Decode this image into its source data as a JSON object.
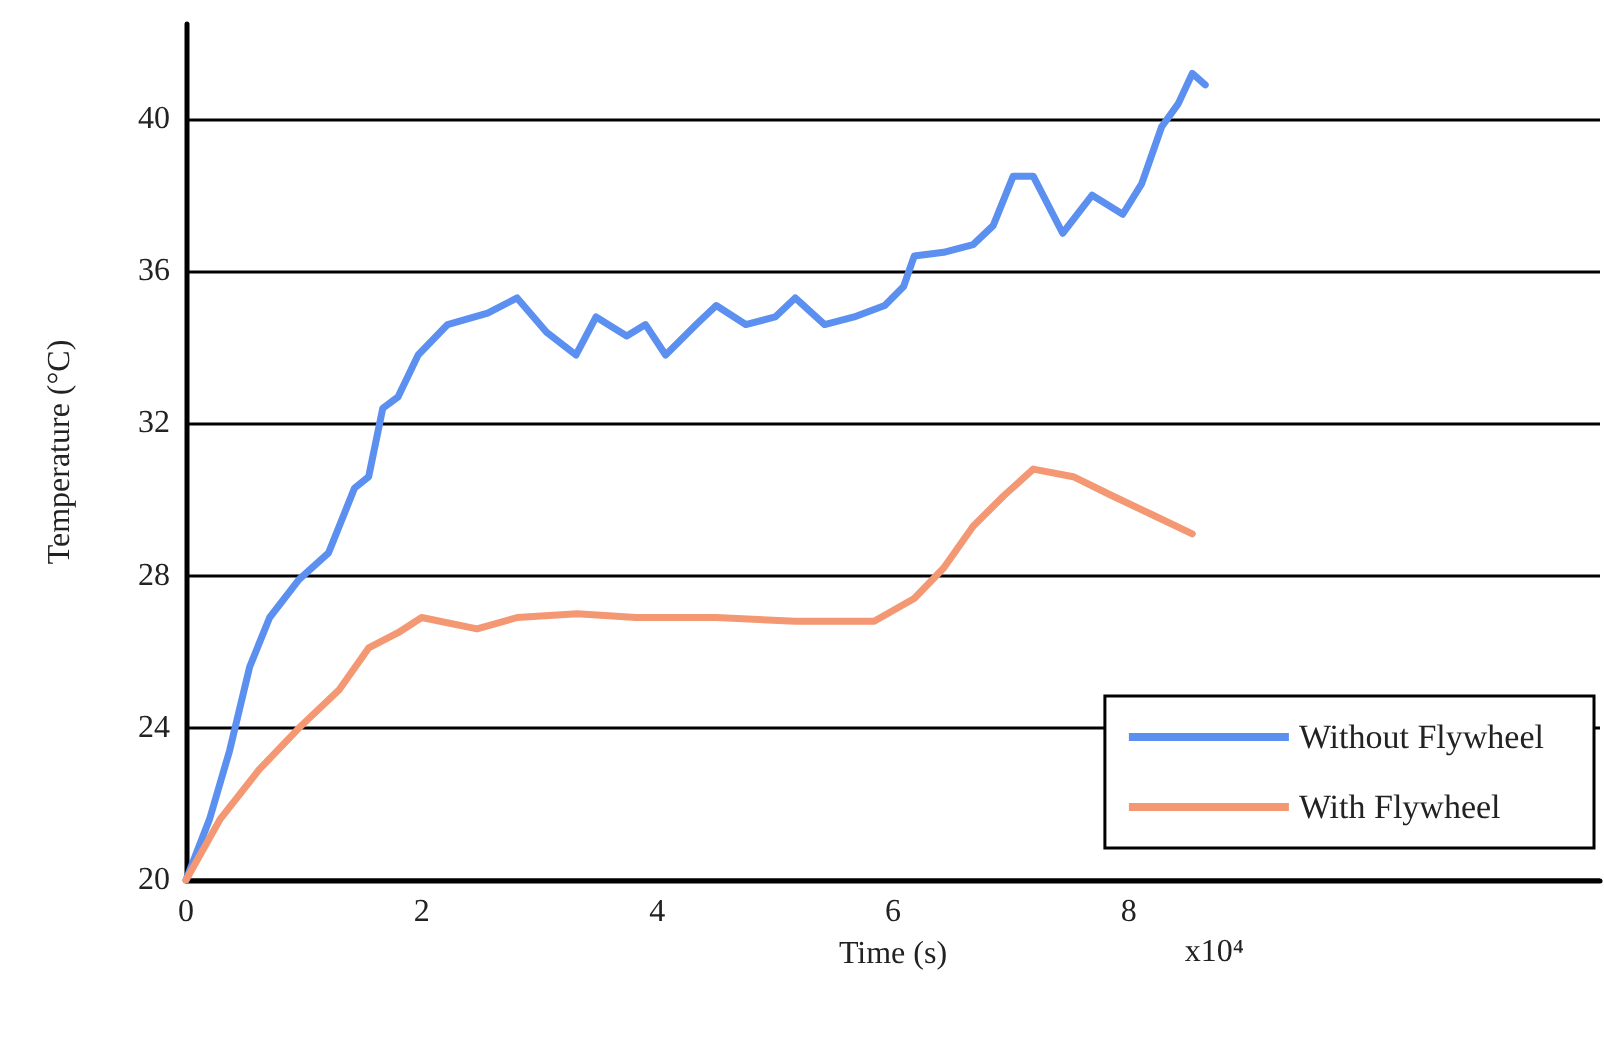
{
  "chart_data": {
    "type": "line",
    "xlabel": "Time (s)",
    "ylabel": "Temperature (°C)",
    "annotations": [
      "x10⁴"
    ],
    "xlim": [
      0,
      12
    ],
    "xticks": [
      0,
      2,
      4,
      6,
      8
    ],
    "ylim": [
      20,
      42.5
    ],
    "yticks": [
      20,
      24,
      28,
      32,
      36,
      40
    ],
    "grid": "y",
    "legend": "bottom right",
    "marker": "none",
    "line_style": "solid",
    "series": [
      {
        "name": "Without Flywheel",
        "color": "#5b8ff0",
        "x": [
          0,
          0.2,
          0.37,
          0.54,
          0.71,
          0.96,
          1.21,
          1.43,
          1.55,
          1.67,
          1.8,
          1.97,
          2.22,
          2.56,
          2.81,
          3.06,
          3.31,
          3.48,
          3.74,
          3.9,
          4.07,
          4.33,
          4.5,
          4.75,
          5.0,
          5.17,
          5.42,
          5.67,
          5.93,
          6.09,
          6.18,
          6.43,
          6.68,
          6.85,
          7.02,
          7.19,
          7.44,
          7.69,
          7.95,
          8.11,
          8.28,
          8.42,
          8.54,
          8.65
        ],
        "values": [
          20,
          21.6,
          23.4,
          25.6,
          26.9,
          27.9,
          28.6,
          30.3,
          30.6,
          32.4,
          32.7,
          33.8,
          34.6,
          34.9,
          35.3,
          34.4,
          33.8,
          34.8,
          34.3,
          34.6,
          33.8,
          34.6,
          35.1,
          34.6,
          34.8,
          35.3,
          34.6,
          34.8,
          35.1,
          35.6,
          36.4,
          36.5,
          36.7,
          37.2,
          38.5,
          38.5,
          37.0,
          38.0,
          37.5,
          38.3,
          39.8,
          40.4,
          41.2,
          40.9
        ]
      },
      {
        "name": "With Flywheel",
        "color": "#f49873",
        "x": [
          0,
          0.29,
          0.62,
          0.96,
          1.3,
          1.55,
          1.8,
          2.0,
          2.47,
          2.81,
          3.32,
          3.82,
          4.5,
          5.17,
          5.84,
          6.18,
          6.43,
          6.68,
          6.94,
          7.19,
          7.53,
          7.86,
          8.2,
          8.54
        ],
        "values": [
          20,
          21.6,
          22.9,
          24.0,
          25.0,
          26.1,
          26.5,
          26.9,
          26.6,
          26.9,
          27.0,
          26.9,
          26.9,
          26.8,
          26.8,
          27.4,
          28.2,
          29.3,
          30.1,
          30.8,
          30.6,
          30.1,
          29.6,
          29.1
        ]
      }
    ]
  }
}
